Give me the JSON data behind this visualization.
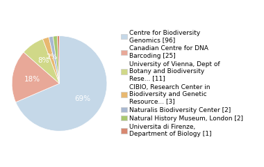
{
  "labels": [
    "Centre for Biodiversity\nGenomics [96]",
    "Canadian Centre for DNA\nBarcoding [25]",
    "University of Vienna, Dept of\nBotany and Biodiversity\nRese... [11]",
    "CIBIO, Research Center in\nBiodiversity and Genetic\nResource... [3]",
    "Naturalis Biodiversity Center [2]",
    "Natural History Museum, London [2]",
    "Universita di Firenze,\nDepartment of Biology [1]"
  ],
  "values": [
    96,
    25,
    11,
    3,
    2,
    2,
    1
  ],
  "colors": [
    "#c5d8e8",
    "#e8a898",
    "#d0d888",
    "#e8b870",
    "#a8b8d0",
    "#a8c870",
    "#d88870"
  ],
  "startangle": 90,
  "background_color": "#ffffff",
  "text_fontsize": 6.5,
  "pct_fontsize": 7.5
}
